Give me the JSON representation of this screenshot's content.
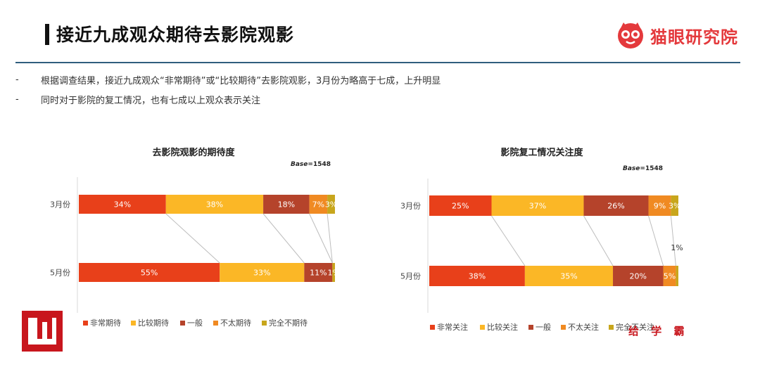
{
  "header": {
    "title": "接近九成观众期待去影院观影",
    "logo_text": "猫眼研究院"
  },
  "bullets": [
    "根据调查结果，接近九成观众“非常期待”或“比较期待”去影院观影，3月份为略高于七成，上升明显",
    "同时对于影院的复工情况，也有七成以上观众表示关注"
  ],
  "bullet_marker": "-",
  "watermark_text": "给 学 霸",
  "colors": [
    "#e8401a",
    "#fbb726",
    "#b5432b",
    "#f08a22",
    "#c8a61c"
  ],
  "chart_data": [
    {
      "type": "bar",
      "orientation": "horizontal",
      "stacked": true,
      "normalized": true,
      "title": "去影院观影的期待度",
      "base_prefix": "Base",
      "base_value": "=1548",
      "categories": [
        "3月份",
        "5月份"
      ],
      "series": [
        {
          "name": "非常期待",
          "values": [
            34,
            55
          ]
        },
        {
          "name": "比较期待",
          "values": [
            38,
            33
          ]
        },
        {
          "name": "一般",
          "values": [
            18,
            11
          ]
        },
        {
          "name": "不太期待",
          "values": [
            7,
            0
          ]
        },
        {
          "name": "完全不期待",
          "values": [
            3,
            1
          ]
        }
      ],
      "data_labels": [
        [
          "34%",
          "38%",
          "18%",
          "7%",
          "3%"
        ],
        [
          "55%",
          "33%",
          "11%",
          "",
          "1%"
        ]
      ],
      "legend_position": "bottom"
    },
    {
      "type": "bar",
      "orientation": "horizontal",
      "stacked": true,
      "normalized": true,
      "title": "影院复工情况关注度",
      "base_prefix": "Base",
      "base_value": "=1548",
      "categories": [
        "3月份",
        "5月份"
      ],
      "series": [
        {
          "name": "非常关注",
          "values": [
            25,
            38
          ]
        },
        {
          "name": "比较关注",
          "values": [
            37,
            35
          ]
        },
        {
          "name": "一般",
          "values": [
            26,
            20
          ]
        },
        {
          "name": "不太关注",
          "values": [
            9,
            5
          ]
        },
        {
          "name": "完全不关注",
          "values": [
            3,
            1
          ]
        }
      ],
      "data_labels": [
        [
          "25%",
          "37%",
          "26%",
          "9%",
          "3%"
        ],
        [
          "38%",
          "35%",
          "20%",
          "5%",
          ""
        ]
      ],
      "callout": "1%",
      "legend_position": "bottom"
    }
  ]
}
